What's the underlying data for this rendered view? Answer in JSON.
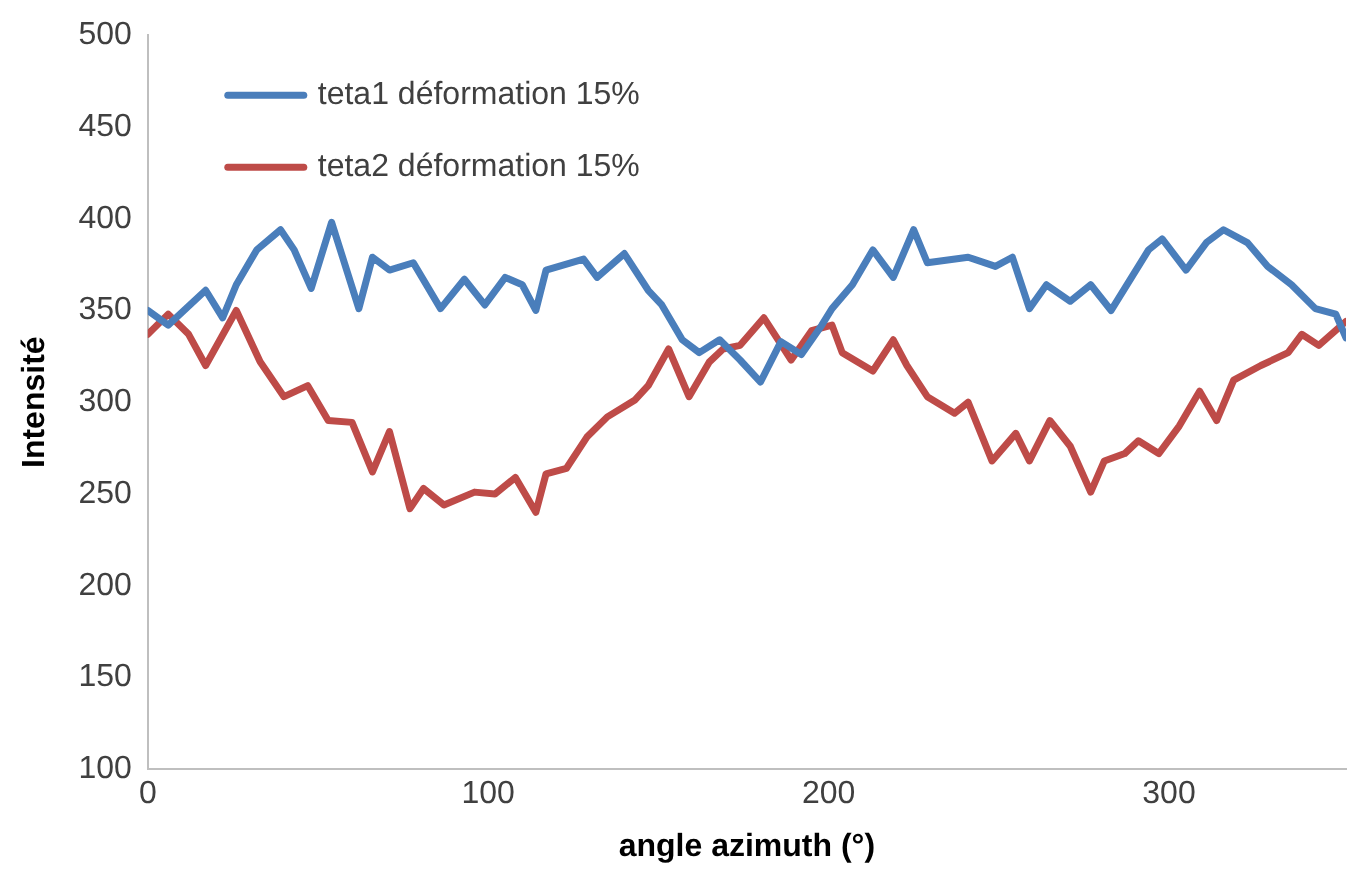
{
  "chart_data": {
    "type": "line",
    "xlabel": "angle azimuth (°)",
    "ylabel": "Intensité",
    "xlim": [
      0,
      352
    ],
    "xticks": [
      0,
      100,
      200,
      300
    ],
    "ylim": [
      100,
      500
    ],
    "yticks": [
      100,
      150,
      200,
      250,
      300,
      350,
      400,
      450,
      500
    ],
    "grid": false,
    "legend": "top left",
    "marker": "none",
    "line_style": "solid",
    "series": [
      {
        "name": "teta1 déformation 15%",
        "color": "#4a7ebb",
        "x": [
          0,
          6,
          17,
          22,
          26,
          32,
          39,
          43,
          48,
          54,
          62,
          66,
          71,
          78,
          86,
          93,
          99,
          105,
          110,
          114,
          117,
          128,
          132,
          140,
          147,
          151,
          157,
          162,
          168,
          174,
          180,
          186,
          192,
          198,
          201,
          207,
          213,
          219,
          225,
          229,
          241,
          249,
          254,
          259,
          264,
          271,
          277,
          283,
          289,
          294,
          298,
          305,
          311,
          316,
          323,
          329,
          336,
          343,
          349,
          352
        ],
        "values": [
          350,
          342,
          361,
          346,
          364,
          383,
          394,
          383,
          362,
          398,
          351,
          379,
          372,
          376,
          351,
          367,
          353,
          368,
          364,
          350,
          372,
          378,
          368,
          381,
          361,
          353,
          334,
          327,
          334,
          323,
          311,
          333,
          326,
          342,
          351,
          364,
          383,
          368,
          394,
          376,
          379,
          374,
          379,
          351,
          364,
          355,
          364,
          350,
          368,
          383,
          389,
          372,
          387,
          394,
          387,
          374,
          364,
          351,
          348,
          335
        ]
      },
      {
        "name": "teta2 déformation 15%",
        "color": "#be4b48",
        "x": [
          0,
          6,
          12,
          17,
          26,
          33,
          40,
          47,
          53,
          60,
          66,
          71,
          77,
          81,
          87,
          96,
          102,
          108,
          114,
          117,
          123,
          129,
          135,
          143,
          147,
          153,
          159,
          165,
          169,
          174,
          181,
          189,
          195,
          201,
          204,
          213,
          219,
          223,
          229,
          237,
          241,
          248,
          255,
          259,
          265,
          271,
          277,
          281,
          287,
          291,
          297,
          303,
          309,
          314,
          319,
          327,
          335,
          339,
          344,
          352
        ],
        "values": [
          337,
          348,
          337,
          320,
          350,
          322,
          303,
          309,
          290,
          289,
          262,
          284,
          242,
          253,
          244,
          251,
          250,
          259,
          240,
          261,
          264,
          281,
          292,
          301,
          309,
          329,
          303,
          322,
          329,
          331,
          346,
          323,
          339,
          342,
          327,
          317,
          334,
          320,
          303,
          294,
          300,
          268,
          283,
          268,
          290,
          276,
          251,
          268,
          272,
          279,
          272,
          287,
          306,
          290,
          312,
          320,
          327,
          337,
          331,
          344
        ]
      }
    ]
  }
}
